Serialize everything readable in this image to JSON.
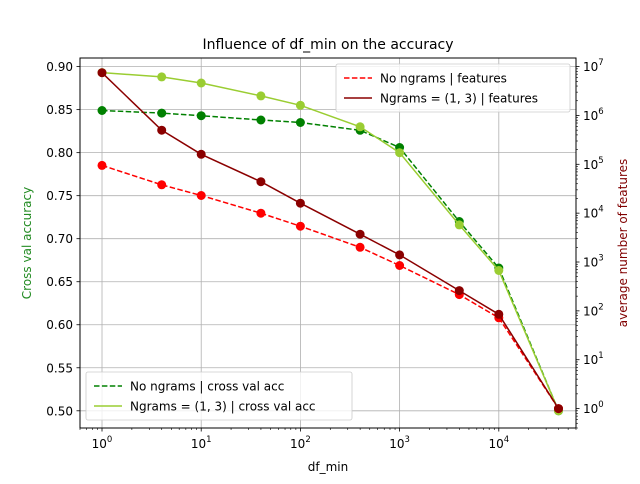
{
  "chart_data": {
    "type": "line",
    "title": "Influence of df_min on the accuracy",
    "xlabel": "df_min",
    "ylabel_left": "Cross val accuracy",
    "ylabel_right": "average number of features",
    "x_scale": "log",
    "y_right_scale": "log",
    "xlim": [
      0.6,
      60000
    ],
    "ylim_left": [
      0.48,
      0.91
    ],
    "ylim_right": [
      0.4,
      15000000
    ],
    "grid": true,
    "colors": {
      "left_axis": "#228b22",
      "right_axis": "#800000",
      "acc_no_ngrams": "#008000",
      "acc_ngrams": "#9acd32",
      "feat_no_ngrams": "#ff0000",
      "feat_ngrams": "#8b0000"
    },
    "x_ticks": [
      {
        "base": "10",
        "exp": "0",
        "value": 1
      },
      {
        "base": "10",
        "exp": "1",
        "value": 10
      },
      {
        "base": "10",
        "exp": "2",
        "value": 100
      },
      {
        "base": "10",
        "exp": "3",
        "value": 1000
      },
      {
        "base": "10",
        "exp": "4",
        "value": 10000
      }
    ],
    "y_left_ticks": [
      "0.50",
      "0.55",
      "0.60",
      "0.65",
      "0.70",
      "0.75",
      "0.80",
      "0.85",
      "0.90"
    ],
    "y_right_ticks": [
      {
        "base": "10",
        "exp": "0",
        "value": 1
      },
      {
        "base": "10",
        "exp": "1",
        "value": 10
      },
      {
        "base": "10",
        "exp": "2",
        "value": 100
      },
      {
        "base": "10",
        "exp": "3",
        "value": 1000
      },
      {
        "base": "10",
        "exp": "4",
        "value": 10000
      },
      {
        "base": "10",
        "exp": "5",
        "value": 100000
      },
      {
        "base": "10",
        "exp": "6",
        "value": 1000000
      },
      {
        "base": "10",
        "exp": "7",
        "value": 10000000
      }
    ],
    "x": [
      1,
      4,
      10,
      40,
      100,
      400,
      1000,
      4000,
      10000,
      40000
    ],
    "series": [
      {
        "name": "No ngrams | cross val acc",
        "axis": "left",
        "style": "dashed",
        "color": "#008000",
        "values": [
          0.849,
          0.846,
          0.843,
          0.838,
          0.835,
          0.826,
          0.806,
          0.72,
          0.666,
          0.5
        ]
      },
      {
        "name": "Ngrams = (1, 3) | cross val acc",
        "axis": "left",
        "style": "solid",
        "color": "#9acd32",
        "values": [
          0.893,
          0.888,
          0.881,
          0.866,
          0.855,
          0.83,
          0.8,
          0.716,
          0.663,
          0.5
        ]
      },
      {
        "name": "No ngrams | features",
        "axis": "right",
        "style": "dashed",
        "color": "#ff0000",
        "values": [
          95000,
          38000,
          23000,
          10000,
          5400,
          2000,
          850,
          215,
          72,
          1
        ]
      },
      {
        "name": "Ngrams = (1, 3) | features",
        "axis": "right",
        "style": "solid",
        "color": "#8b0000",
        "values": [
          7500000,
          500000,
          160000,
          44000,
          16000,
          3700,
          1400,
          260,
          85,
          1
        ]
      }
    ],
    "legends": [
      {
        "location": "upper right",
        "entries": [
          "No ngrams | features",
          "Ngrams = (1, 3) | features"
        ]
      },
      {
        "location": "lower left",
        "entries": [
          "No ngrams | cross val acc",
          "Ngrams = (1, 3) | cross val acc"
        ]
      }
    ]
  }
}
